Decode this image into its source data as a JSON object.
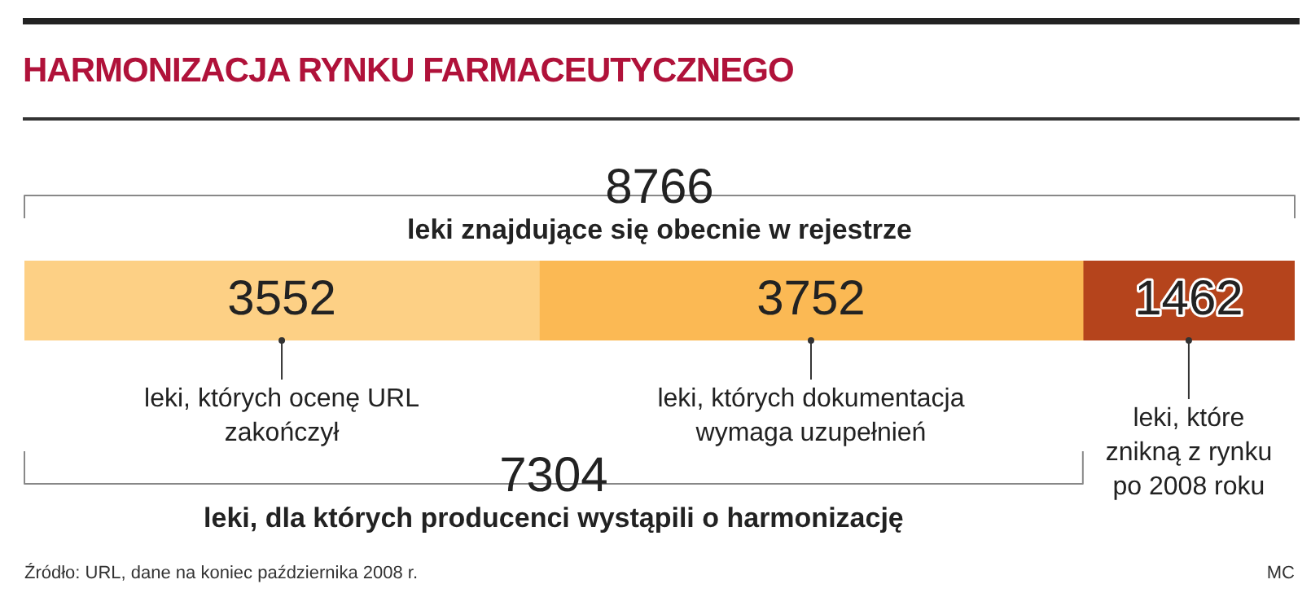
{
  "chart_data": {
    "type": "bar",
    "orientation": "horizontal",
    "stacked": true,
    "title": "HARMONIZACJA RYNKU FARMACEUTYCZNEGO",
    "categories": [
      null
    ],
    "series": [
      {
        "name": "leki, których ocenę URL zakończył",
        "color": "#fdd085",
        "values": [
          3552
        ]
      },
      {
        "name": "leki, których dokumentacja wymaga uzupełnień",
        "color": "#fbb954",
        "values": [
          3752
        ]
      },
      {
        "name": "leki, które znikną z rynku po 2008 roku",
        "color": "#b5441c",
        "values": [
          1462
        ]
      }
    ],
    "data_labels": true,
    "legend": false,
    "annotations": [
      "8766",
      "leki znajdujące się obecnie w rejestrze",
      "7304",
      "leki, dla których producenci wystąpili o harmonizację",
      "Źródło: URL, dane na koniec października 2008 r.",
      "MC"
    ]
  }
}
